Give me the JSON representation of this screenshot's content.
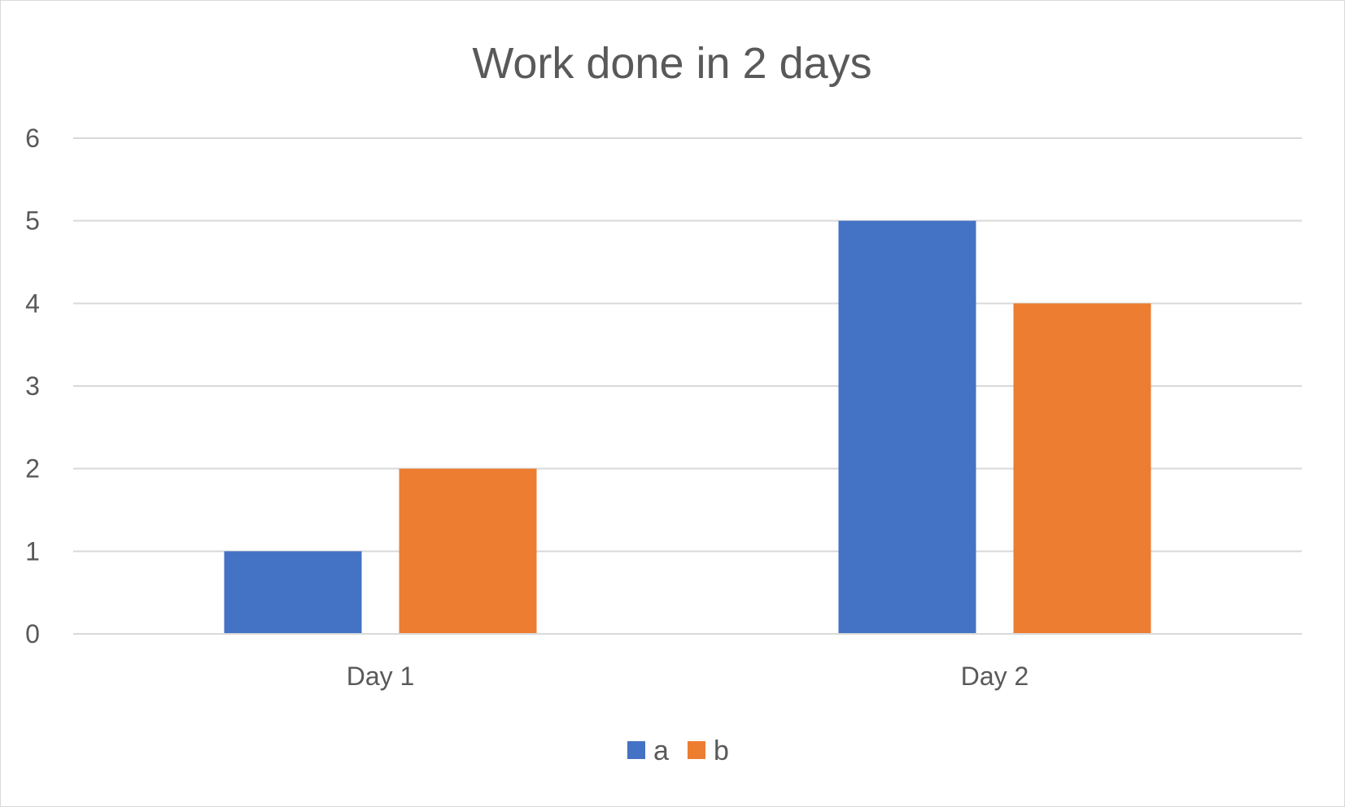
{
  "chart_data": {
    "type": "bar",
    "title": "Work done in 2 days",
    "categories": [
      "Day 1",
      "Day 2"
    ],
    "series": [
      {
        "name": "a",
        "values": [
          1,
          5
        ],
        "color": "#4472C4"
      },
      {
        "name": "b",
        "values": [
          2,
          4
        ],
        "color": "#ED7D31"
      }
    ],
    "ylim": [
      0,
      6
    ],
    "yticks": [
      "0",
      "1",
      "2",
      "3",
      "4",
      "5",
      "6"
    ],
    "grid": true,
    "legend_position": "bottom"
  }
}
